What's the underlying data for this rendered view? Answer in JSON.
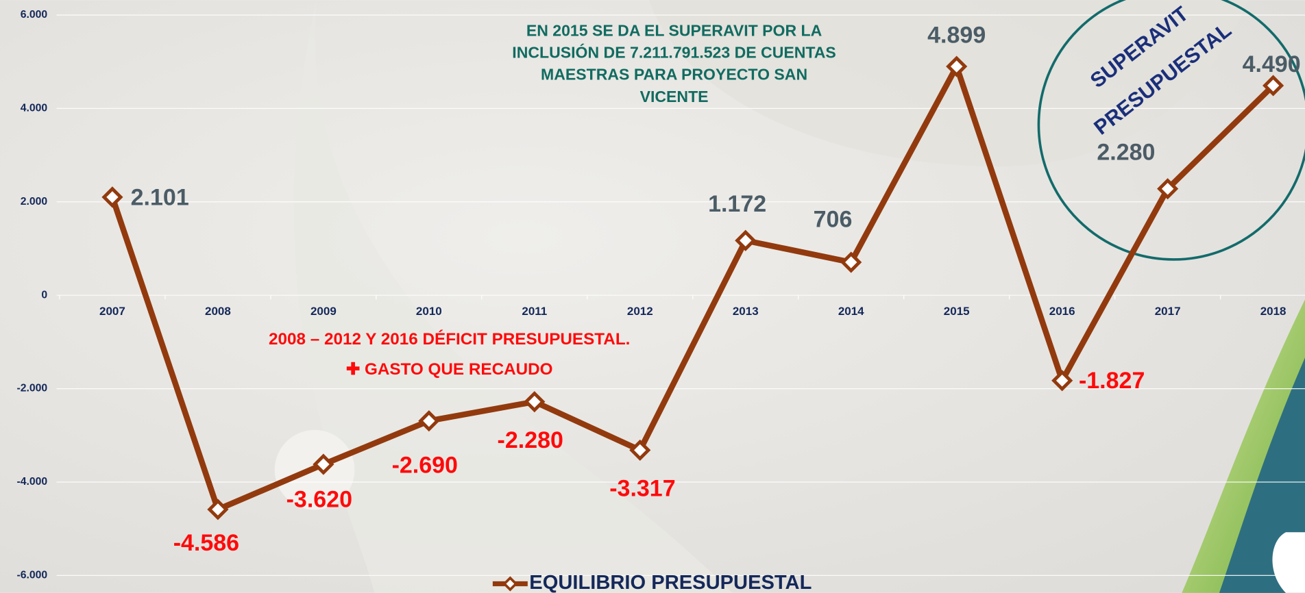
{
  "chart_data": {
    "type": "line",
    "categories": [
      "2007",
      "2008",
      "2009",
      "2010",
      "2011",
      "2012",
      "2013",
      "2014",
      "2015",
      "2016",
      "2017",
      "2018"
    ],
    "series": [
      {
        "name": "EQUILIBRIO PRESUPUESTAL",
        "color": "#923a0e",
        "values": [
          2101,
          -4586,
          -3620,
          -2690,
          -2280,
          -3317,
          1172,
          706,
          4899,
          -1827,
          2280,
          4490
        ],
        "value_labels": [
          "2.101",
          "-4.586",
          "-3.620",
          "-2.690",
          "-2.280",
          "-3.317",
          "1.172",
          "706",
          "4.899",
          "-1.827",
          "2.280",
          "4.490"
        ]
      }
    ],
    "ylim": [
      -6000,
      6000
    ],
    "yticks": [
      {
        "value": -6000,
        "label": "-6.000"
      },
      {
        "value": -4000,
        "label": "-4.000"
      },
      {
        "value": -2000,
        "label": "-2.000"
      },
      0,
      {
        "value": 2000,
        "label": "2.000"
      },
      {
        "value": 4000,
        "label": "4.000"
      },
      {
        "value": 6000,
        "label": "6.000"
      }
    ],
    "grid": true,
    "annotations": {
      "surplus_note": [
        "EN 2015 SE DA EL SUPERAVIT POR LA",
        "INCLUSIÓN DE 7.211.791.523 DE CUENTAS",
        "MAESTRAS PARA PROYECTO SAN",
        "VICENTE"
      ],
      "deficit_note": [
        "2008 – 2012 Y 2016 DÉFICIT PRESUPUESTAL.",
        "✚ GASTO QUE RECAUDO"
      ],
      "circle_label": [
        "SUPERAVIT",
        "PRESUPUESTAL"
      ]
    }
  }
}
